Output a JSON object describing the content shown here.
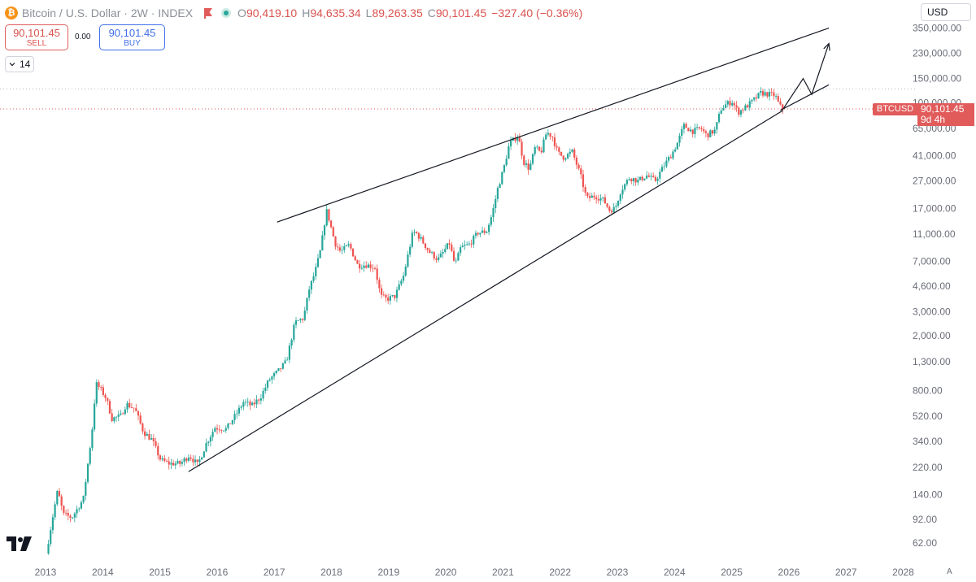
{
  "header": {
    "logo_glyph": "₿",
    "logo_icon": "bitcoin-logo-icon",
    "title": "Bitcoin / U.S. Dollar · 2W · INDEX",
    "flag_icon": "red-flag-icon",
    "ohlc": [
      {
        "key": "O",
        "value": "90,419.10"
      },
      {
        "key": "H",
        "value": "94,635.34"
      },
      {
        "key": "L",
        "value": "89,263.35"
      },
      {
        "key": "C",
        "value": "90,101.45"
      }
    ],
    "change": "−327.40 (−0.36%)"
  },
  "trade": {
    "sell_price": "90,101.45",
    "sell_label": "SELL",
    "spread": "0.00",
    "buy_price": "90,101.45",
    "buy_label": "BUY"
  },
  "indicator": {
    "value": "14",
    "icon": "chevron-down-icon"
  },
  "currency": "USD",
  "price_tag": {
    "symbol": "BTCUSD",
    "price": "90,101.45",
    "countdown": "9d 4h"
  },
  "auto_label": "A",
  "colors": {
    "up": "#26a69a",
    "down": "#ef5350",
    "trendline": "#131722",
    "price_line": "#e15b5b",
    "axis_text": "#6a6d78"
  },
  "chart_data": {
    "type": "candlestick",
    "scale": "log",
    "title": "Bitcoin / U.S. Dollar · 2W · INDEX",
    "x_ticks": [
      "2013",
      "2014",
      "2015",
      "2016",
      "2017",
      "2018",
      "2019",
      "2020",
      "2021",
      "2022",
      "2023",
      "2024",
      "2025",
      "2026",
      "2027",
      "2028"
    ],
    "y_ticks": [
      {
        "value": 350000,
        "label": "350,000.00"
      },
      {
        "value": 230000,
        "label": "230,000.00"
      },
      {
        "value": 150000,
        "label": "150,000.00"
      },
      {
        "value": 100000,
        "label": "100,000.00"
      },
      {
        "value": 65000,
        "label": "65,000.00"
      },
      {
        "value": 41000,
        "label": "41,000.00"
      },
      {
        "value": 27000,
        "label": "27,000.00"
      },
      {
        "value": 17000,
        "label": "17,000.00"
      },
      {
        "value": 11000,
        "label": "11,000.00"
      },
      {
        "value": 7000,
        "label": "7,000.00"
      },
      {
        "value": 4600,
        "label": "4,600.00"
      },
      {
        "value": 3000,
        "label": "3,000.00"
      },
      {
        "value": 2000,
        "label": "2,000.00"
      },
      {
        "value": 1300,
        "label": "1,300.00"
      },
      {
        "value": 800,
        "label": "800.00"
      },
      {
        "value": 520,
        "label": "520.00"
      },
      {
        "value": 340,
        "label": "340.00"
      },
      {
        "value": 220,
        "label": "220.00"
      },
      {
        "value": 140,
        "label": "140.00"
      },
      {
        "value": 92,
        "label": "92.00"
      },
      {
        "value": 62,
        "label": "62.00"
      }
    ],
    "ylim": [
      48,
      380000
    ],
    "current_price": 90101.45,
    "reference_levels": [
      126000
    ],
    "price_path": [
      [
        2013.05,
        52
      ],
      [
        2013.15,
        90
      ],
      [
        2013.25,
        150
      ],
      [
        2013.35,
        100
      ],
      [
        2013.5,
        95
      ],
      [
        2013.7,
        130
      ],
      [
        2013.85,
        400
      ],
      [
        2013.92,
        900
      ],
      [
        2014.0,
        820
      ],
      [
        2014.1,
        700
      ],
      [
        2014.2,
        500
      ],
      [
        2014.35,
        520
      ],
      [
        2014.45,
        640
      ],
      [
        2014.6,
        590
      ],
      [
        2014.75,
        400
      ],
      [
        2014.9,
        350
      ],
      [
        2015.05,
        250
      ],
      [
        2015.2,
        235
      ],
      [
        2015.4,
        235
      ],
      [
        2015.55,
        270
      ],
      [
        2015.7,
        230
      ],
      [
        2015.85,
        330
      ],
      [
        2016.0,
        430
      ],
      [
        2016.2,
        420
      ],
      [
        2016.4,
        560
      ],
      [
        2016.5,
        660
      ],
      [
        2016.65,
        620
      ],
      [
        2016.8,
        720
      ],
      [
        2016.95,
        960
      ],
      [
        2017.1,
        1100
      ],
      [
        2017.25,
        1300
      ],
      [
        2017.4,
        2500
      ],
      [
        2017.55,
        2700
      ],
      [
        2017.65,
        4400
      ],
      [
        2017.75,
        5800
      ],
      [
        2017.85,
        8500
      ],
      [
        2017.95,
        16500
      ],
      [
        2018.0,
        14000
      ],
      [
        2018.1,
        9500
      ],
      [
        2018.2,
        8200
      ],
      [
        2018.35,
        9200
      ],
      [
        2018.5,
        6500
      ],
      [
        2018.65,
        6600
      ],
      [
        2018.8,
        6300
      ],
      [
        2018.9,
        3900
      ],
      [
        2019.0,
        3700
      ],
      [
        2019.15,
        3900
      ],
      [
        2019.3,
        5500
      ],
      [
        2019.45,
        10800
      ],
      [
        2019.5,
        11500
      ],
      [
        2019.6,
        10200
      ],
      [
        2019.75,
        8200
      ],
      [
        2019.9,
        7200
      ],
      [
        2020.0,
        8200
      ],
      [
        2020.1,
        9500
      ],
      [
        2020.2,
        6500
      ],
      [
        2020.3,
        8800
      ],
      [
        2020.45,
        9300
      ],
      [
        2020.6,
        11300
      ],
      [
        2020.75,
        11500
      ],
      [
        2020.85,
        15500
      ],
      [
        2020.95,
        24000
      ],
      [
        2021.05,
        33000
      ],
      [
        2021.15,
        50000
      ],
      [
        2021.3,
        58000
      ],
      [
        2021.4,
        37000
      ],
      [
        2021.5,
        33000
      ],
      [
        2021.6,
        47000
      ],
      [
        2021.7,
        43000
      ],
      [
        2021.8,
        61000
      ],
      [
        2021.9,
        57000
      ],
      [
        2022.0,
        43000
      ],
      [
        2022.1,
        40000
      ],
      [
        2022.25,
        44000
      ],
      [
        2022.4,
        29000
      ],
      [
        2022.5,
        20000
      ],
      [
        2022.65,
        21000
      ],
      [
        2022.8,
        19500
      ],
      [
        2022.9,
        16500
      ],
      [
        2023.0,
        17000
      ],
      [
        2023.1,
        23000
      ],
      [
        2023.25,
        28500
      ],
      [
        2023.4,
        27000
      ],
      [
        2023.55,
        29500
      ],
      [
        2023.7,
        27000
      ],
      [
        2023.85,
        34500
      ],
      [
        2024.0,
        43000
      ],
      [
        2024.1,
        52000
      ],
      [
        2024.2,
        68000
      ],
      [
        2024.35,
        62000
      ],
      [
        2024.5,
        65000
      ],
      [
        2024.6,
        58000
      ],
      [
        2024.75,
        63000
      ],
      [
        2024.85,
        90000
      ],
      [
        2024.95,
        98000
      ],
      [
        2025.05,
        102000
      ],
      [
        2025.15,
        85000
      ],
      [
        2025.3,
        94000
      ],
      [
        2025.45,
        107000
      ],
      [
        2025.55,
        118000
      ],
      [
        2025.7,
        115000
      ],
      [
        2025.8,
        113000
      ],
      [
        2025.87,
        96000
      ],
      [
        2025.92,
        90101
      ]
    ],
    "annotations": [
      {
        "type": "trendline",
        "from": [
          2015.5,
          205
        ],
        "to": [
          2025.9,
          88000
        ]
      },
      {
        "type": "trendline",
        "from": [
          2025.85,
          88000
        ],
        "to": [
          2026.7,
          135000
        ]
      },
      {
        "type": "trendline",
        "from": [
          2017.05,
          13500
        ],
        "to": [
          2026.7,
          350000
        ]
      },
      {
        "type": "projection-arrow",
        "points": [
          [
            2025.9,
            90000
          ],
          [
            2026.25,
            150000
          ],
          [
            2026.4,
            115000
          ],
          [
            2026.7,
            270000
          ]
        ]
      }
    ]
  }
}
